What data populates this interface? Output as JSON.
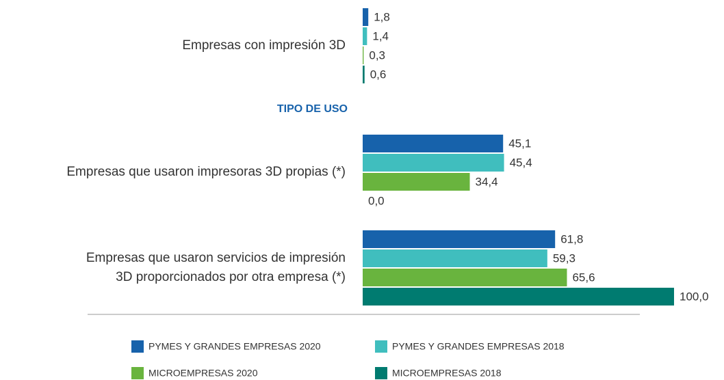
{
  "chart_data": {
    "type": "hbar",
    "categories": [
      "Empresas con impresión 3D",
      "Empresas que usaron impresoras 3D propias (*)",
      "Empresas que usaron servicios de impresión\n3D proporcionados por otra empresa (*)"
    ],
    "section_label": "TIPO DE USO",
    "xlim": [
      0,
      100
    ],
    "legend": "bottom",
    "series": [
      {
        "name": "PYMES Y GRANDES EMPRESAS 2020",
        "color": "#1762ab",
        "values": [
          1.8,
          45.1,
          61.8
        ],
        "value_labels": [
          "1,8",
          "45,1",
          "61,8"
        ]
      },
      {
        "name": "PYMES Y GRANDES EMPRESAS 2018",
        "color": "#40bebe",
        "values": [
          1.4,
          45.4,
          59.3
        ],
        "value_labels": [
          "1,4",
          "45,4",
          "59,3"
        ]
      },
      {
        "name": "MICROEMPRESAS 2020",
        "color": "#69b43e",
        "values": [
          0.3,
          34.4,
          65.6
        ],
        "value_labels": [
          "0,3",
          "34,4",
          "65,6"
        ]
      },
      {
        "name": "MICROEMPRESAS 2018",
        "color": "#007b70",
        "values": [
          0.6,
          0.0,
          100.0
        ],
        "value_labels": [
          "0,6",
          "0,0",
          "100,0"
        ]
      }
    ]
  }
}
